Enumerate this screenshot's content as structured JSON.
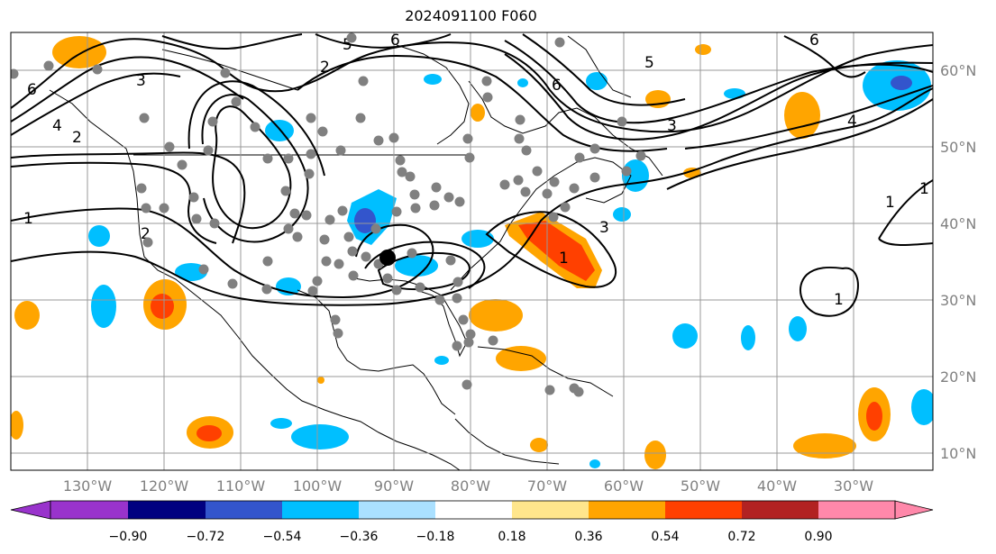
{
  "title": "2024091100 F060",
  "colors": {
    "grid": "#999999",
    "label": "#808080",
    "contour": "#000000",
    "station": "#808080"
  },
  "icons": {
    "station_marker": "filled-gray-circle",
    "center_marker": "filled-black-circle"
  },
  "longitude_labels": [
    "130°W",
    "120°W",
    "110°W",
    "100°W",
    "90°W",
    "80°W",
    "70°W",
    "60°W",
    "50°W",
    "40°W",
    "30°W"
  ],
  "latitude_labels": [
    "60°N",
    "50°N",
    "40°N",
    "30°N",
    "20°N",
    "10°N"
  ],
  "colorbar": {
    "ticks": [
      "−0.90",
      "−0.72",
      "−0.54",
      "−0.36",
      "−0.18",
      "0.18",
      "0.36",
      "0.54",
      "0.72",
      "0.90"
    ],
    "colors": [
      "#9933cc",
      "#000080",
      "#3355cc",
      "#00bfff",
      "#aae0ff",
      "#ffffff",
      "#ffe68c",
      "#ffa500",
      "#ff4000",
      "#b22222",
      "#ff88aa"
    ]
  },
  "contour_labels": [
    "1",
    "1",
    "1",
    "1",
    "1",
    "2",
    "2",
    "2",
    "3",
    "3",
    "3",
    "4",
    "4",
    "5",
    "5",
    "6",
    "6",
    "6",
    "6"
  ]
}
